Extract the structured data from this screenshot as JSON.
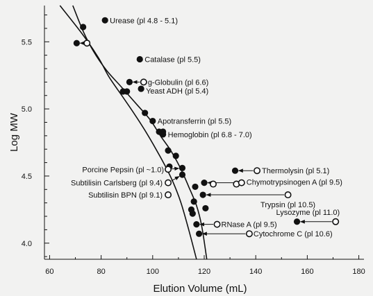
{
  "chart_data": {
    "type": "scatter",
    "xlabel": "Elution Volume (mL)",
    "ylabel": "Log MW",
    "xlim": [
      58,
      182
    ],
    "ylim": [
      3.88,
      5.77
    ],
    "x_ticks": [
      60,
      80,
      100,
      120,
      140,
      160,
      180
    ],
    "x_tick_labels": [
      "60",
      "80",
      "100",
      "120",
      "140",
      "160",
      "180"
    ],
    "y_ticks": [
      4.0,
      4.5,
      5.0,
      5.5
    ],
    "y_tick_labels": [
      "4.0",
      "4.5",
      "5.0",
      "5.5"
    ],
    "grid": false,
    "legend": "none",
    "marker_colors": {
      "filled": "#111111",
      "open_fill": "#ffffff",
      "line": "#111111"
    },
    "calibration_curves": [
      {
        "x": [
          64,
          73,
          79,
          83,
          88,
          93,
          97,
          101,
          105,
          108,
          111,
          114,
          117
        ],
        "y": [
          5.77,
          5.55,
          5.38,
          5.24,
          5.1,
          4.96,
          4.84,
          4.71,
          4.57,
          4.45,
          4.3,
          4.1,
          3.88
        ]
      },
      {
        "x": [
          69,
          73,
          77,
          82,
          88,
          94,
          99,
          103,
          107,
          111,
          114,
          117,
          119,
          121
        ],
        "y": [
          5.77,
          5.58,
          5.43,
          5.29,
          5.16,
          5.03,
          4.92,
          4.8,
          4.69,
          4.55,
          4.42,
          4.28,
          4.13,
          3.88
        ]
      }
    ],
    "labeled_points": [
      {
        "label": "Urease (pl 4.8 - 5.1)",
        "x": 81.5,
        "y": 5.66,
        "filled": true
      },
      {
        "label": "Catalase (pl 5.5)",
        "x": 95.0,
        "y": 5.37,
        "filled": true
      },
      {
        "label": "g-Globulin (pl 6.6)",
        "x": 96.5,
        "y": 5.2,
        "filled": false
      },
      {
        "label": "Yeast ADH (pl 5.4)",
        "x": 95.5,
        "y": 5.15,
        "filled": true
      },
      {
        "label": "Apotransferrin (pl 5.5)",
        "x": 100.0,
        "y": 4.91,
        "filled": true
      },
      {
        "label": "Hemoglobin (pl 6.8 - 7.0)",
        "x": 104.0,
        "y": 4.81,
        "filled": true
      },
      {
        "label": "Porcine Pepsin (pl ~1.0)",
        "x": 106.0,
        "y": 4.55,
        "filled": false
      },
      {
        "label": "Thermolysin (pl 5.1)",
        "x": 140.5,
        "y": 4.54,
        "filled": false
      },
      {
        "label": "Subtilisin Carlsberg (pl 9.4)",
        "x": 106.0,
        "y": 4.45,
        "filled": false
      },
      {
        "label": "Chymotrypsinogen A (pl 9.5)",
        "x": 134.5,
        "y": 4.45,
        "filled": false
      },
      {
        "label": "Subtilisin BPN (pl 9.1)",
        "x": 106.0,
        "y": 4.36,
        "filled": false
      },
      {
        "label": "Trypsin (pl 10.5)",
        "x": 152.5,
        "y": 4.36,
        "filled": false
      },
      {
        "label": "Lysozyme (pl 11.0)",
        "x": 171.0,
        "y": 4.16,
        "filled": false
      },
      {
        "label": "RNase A (pl 9.5)",
        "x": 125.0,
        "y": 4.14,
        "filled": false
      },
      {
        "label": "Cytochrome C (pl 10.6)",
        "x": 137.5,
        "y": 4.07,
        "filled": false
      }
    ],
    "filled_points": [
      {
        "x": 73.0,
        "y": 5.61
      },
      {
        "x": 70.5,
        "y": 5.49
      },
      {
        "x": 88.5,
        "y": 5.13
      },
      {
        "x": 91.0,
        "y": 5.2
      },
      {
        "x": 90.0,
        "y": 5.13
      },
      {
        "x": 97.0,
        "y": 4.97
      },
      {
        "x": 102.5,
        "y": 4.83
      },
      {
        "x": 104.0,
        "y": 4.83
      },
      {
        "x": 106.0,
        "y": 4.69
      },
      {
        "x": 109.0,
        "y": 4.65
      },
      {
        "x": 106.5,
        "y": 4.57
      },
      {
        "x": 111.5,
        "y": 4.56
      },
      {
        "x": 132.0,
        "y": 4.54
      },
      {
        "x": 111.5,
        "y": 4.51
      },
      {
        "x": 120.0,
        "y": 4.45
      },
      {
        "x": 116.5,
        "y": 4.42
      },
      {
        "x": 119.5,
        "y": 4.36
      },
      {
        "x": 116.0,
        "y": 4.31
      },
      {
        "x": 120.5,
        "y": 4.26
      },
      {
        "x": 115.0,
        "y": 4.25
      },
      {
        "x": 115.5,
        "y": 4.22
      },
      {
        "x": 156.0,
        "y": 4.16
      },
      {
        "x": 117.0,
        "y": 4.14
      },
      {
        "x": 118.0,
        "y": 4.07
      }
    ],
    "open_points": [
      {
        "x": 74.5,
        "y": 5.49
      },
      {
        "x": 123.5,
        "y": 4.44
      },
      {
        "x": 132.5,
        "y": 4.44
      }
    ],
    "arrows": [
      {
        "from": [
          74.5,
          5.49
        ],
        "to": [
          70.5,
          5.49
        ]
      },
      {
        "from": [
          96.5,
          5.2
        ],
        "to": [
          91.0,
          5.2
        ]
      },
      {
        "from": [
          106.0,
          4.55
        ],
        "to": [
          111.5,
          4.56
        ]
      },
      {
        "from": [
          106.0,
          4.45
        ],
        "to": [
          111.5,
          4.51
        ]
      },
      {
        "from": [
          140.5,
          4.54
        ],
        "to": [
          132.0,
          4.54
        ]
      },
      {
        "from": [
          134.5,
          4.45
        ],
        "to": [
          120.0,
          4.45
        ]
      },
      {
        "from": [
          152.5,
          4.36
        ],
        "to": [
          119.5,
          4.36
        ]
      },
      {
        "from": [
          171.0,
          4.16
        ],
        "to": [
          156.0,
          4.16
        ]
      },
      {
        "from": [
          125.0,
          4.14
        ],
        "to": [
          117.0,
          4.14
        ]
      },
      {
        "from": [
          137.5,
          4.07
        ],
        "to": [
          118.0,
          4.07
        ]
      }
    ]
  }
}
